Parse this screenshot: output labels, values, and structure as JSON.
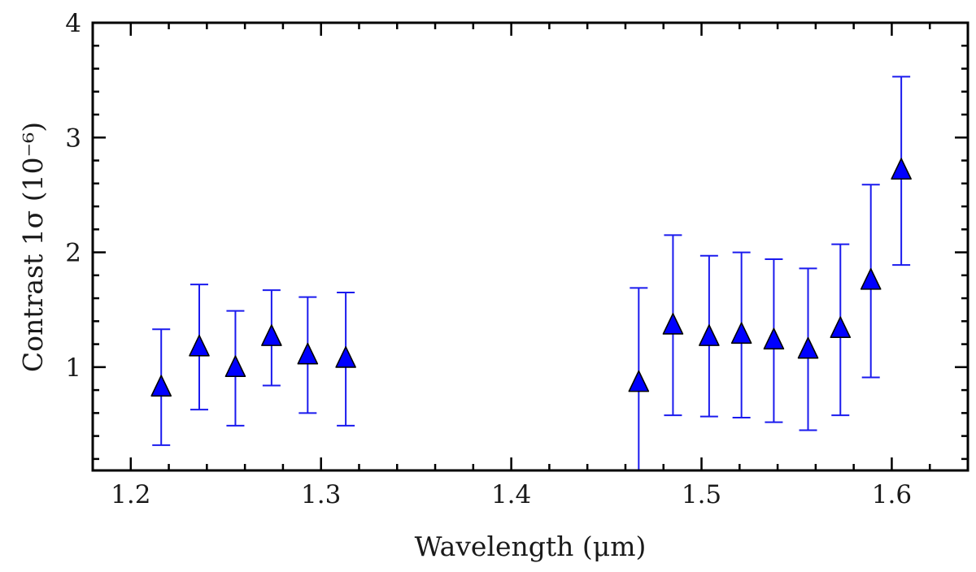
{
  "chart_data": {
    "type": "scatter",
    "title": "",
    "xlabel": "Wavelength (μm)",
    "ylabel": "Contrast 1σ (10⁻⁶)",
    "xlim": [
      1.18,
      1.64
    ],
    "ylim": [
      0.1,
      4.0
    ],
    "x_ticks": [
      1.2,
      1.3,
      1.4,
      1.5,
      1.6
    ],
    "x_tick_labels": [
      "1.2",
      "1.3",
      "1.4",
      "1.5",
      "1.6"
    ],
    "y_ticks": [
      1,
      2,
      3,
      4
    ],
    "y_tick_labels": [
      "1",
      "2",
      "3",
      "4"
    ],
    "marker": "triangle",
    "marker_color": "#0000ff",
    "errorbar_color": "#1a1aee",
    "series": [
      {
        "name": "Contrast 1σ",
        "points": [
          {
            "x": 1.216,
            "y": 0.82,
            "err_low": 0.32,
            "err_high": 1.33
          },
          {
            "x": 1.236,
            "y": 1.17,
            "err_low": 0.63,
            "err_high": 1.72
          },
          {
            "x": 1.255,
            "y": 0.99,
            "err_low": 0.49,
            "err_high": 1.49
          },
          {
            "x": 1.274,
            "y": 1.26,
            "err_low": 0.84,
            "err_high": 1.67
          },
          {
            "x": 1.293,
            "y": 1.1,
            "err_low": 0.6,
            "err_high": 1.61
          },
          {
            "x": 1.313,
            "y": 1.07,
            "err_low": 0.49,
            "err_high": 1.65
          },
          {
            "x": 1.467,
            "y": 0.86,
            "err_low": 0.0,
            "err_high": 1.69
          },
          {
            "x": 1.485,
            "y": 1.36,
            "err_low": 0.58,
            "err_high": 2.15
          },
          {
            "x": 1.504,
            "y": 1.26,
            "err_low": 0.57,
            "err_high": 1.97
          },
          {
            "x": 1.521,
            "y": 1.28,
            "err_low": 0.56,
            "err_high": 2.0
          },
          {
            "x": 1.538,
            "y": 1.23,
            "err_low": 0.52,
            "err_high": 1.94
          },
          {
            "x": 1.556,
            "y": 1.15,
            "err_low": 0.45,
            "err_high": 1.86
          },
          {
            "x": 1.573,
            "y": 1.33,
            "err_low": 0.58,
            "err_high": 2.07
          },
          {
            "x": 1.589,
            "y": 1.75,
            "err_low": 0.91,
            "err_high": 2.59
          },
          {
            "x": 1.605,
            "y": 2.71,
            "err_low": 1.89,
            "err_high": 3.53
          }
        ]
      }
    ]
  }
}
